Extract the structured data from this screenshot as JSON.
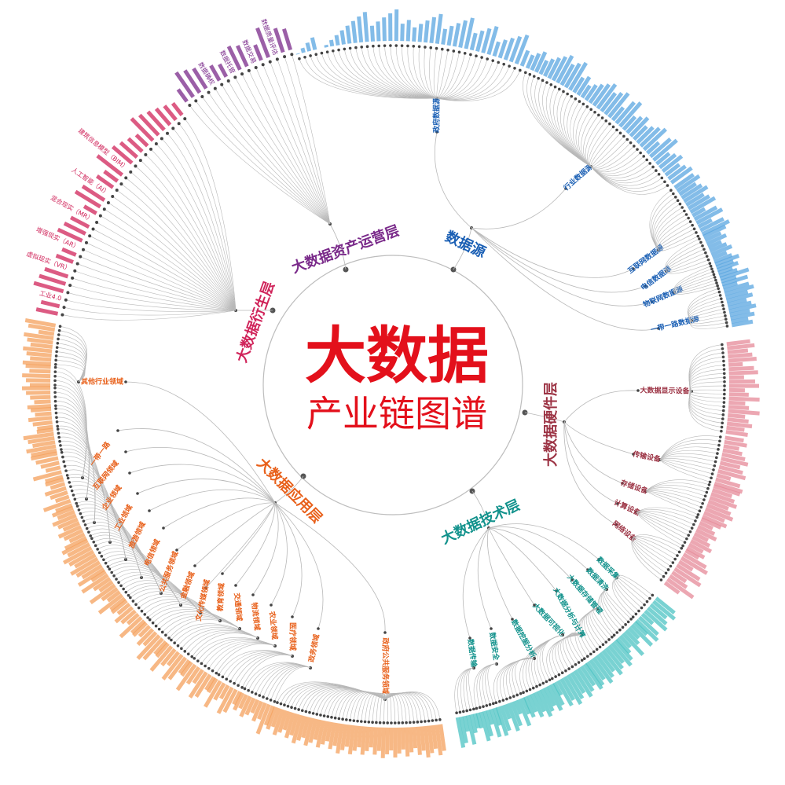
{
  "title": {
    "main": "大数据",
    "sub": "产业链图谱",
    "color": "#e3101b"
  },
  "layers": [
    {
      "name": "数据源",
      "color": "#1a5fb4",
      "leaf_color": "#5aa6e0",
      "branches": [
        {
          "name": "政府数据源"
        },
        {
          "name": "行业数据源"
        },
        {
          "name": "互联网数据源"
        },
        {
          "name": "电信数据源"
        },
        {
          "name": "物联网数据源"
        },
        {
          "name": "一带一路数据源"
        }
      ]
    },
    {
      "name": "大数据硬件层",
      "color": "#9c3344",
      "leaf_color": "#e58a98",
      "branches": [
        {
          "name": "大数据显示设备"
        },
        {
          "name": "传输设备"
        },
        {
          "name": "存储设备"
        },
        {
          "name": "计算设备"
        },
        {
          "name": "网络设备"
        }
      ]
    },
    {
      "name": "大数据技术层",
      "color": "#12928c",
      "leaf_color": "#4cc3c3",
      "branches": [
        {
          "name": "数据采集"
        },
        {
          "name": "数据清洗"
        },
        {
          "name": "大数据存储管理"
        },
        {
          "name": "大数据分析与计算"
        },
        {
          "name": "大数据可视化"
        },
        {
          "name": "数据挖掘分析"
        },
        {
          "name": "数据安全"
        },
        {
          "name": "数据传输"
        }
      ]
    },
    {
      "name": "大数据应用层",
      "color": "#e8601a",
      "leaf_color": "#f4a05c",
      "branches": [
        {
          "name": "政府公共服务领域"
        },
        {
          "name": "政务领域"
        },
        {
          "name": "医疗领域"
        },
        {
          "name": "农业领域"
        },
        {
          "name": "物流领域"
        },
        {
          "name": "交通领域"
        },
        {
          "name": "教育领域"
        },
        {
          "name": "文化传媒领域"
        },
        {
          "name": "金融领域"
        },
        {
          "name": "公共服务领域"
        },
        {
          "name": "电信领域"
        },
        {
          "name": "旅游领域"
        },
        {
          "name": "工业领域"
        },
        {
          "name": "企业领域"
        },
        {
          "name": "互联网领域"
        },
        {
          "name": "一带一路"
        },
        {
          "name": "其他行业领域"
        }
      ]
    },
    {
      "name": "大数据衍生层",
      "color": "#d0245a",
      "leaf_color": "#d0245a",
      "leaves": [
        "工业4.0",
        "虚拟现实（VR）",
        "增强现实（AR）",
        "混合现实（MR）",
        "人工智能（AI）",
        "建筑信息模型（BIM）"
      ]
    },
    {
      "name": "大数据资产运营层",
      "color": "#7a2a8a",
      "leaf_color": "#7a2a8a",
      "leaves": [
        "数据确权",
        "数据托管",
        "数据交易",
        "数据质量评估"
      ]
    }
  ],
  "colors": {
    "ring": "#bdbdbd",
    "link": "#b8b8b8",
    "node": "#444444"
  }
}
